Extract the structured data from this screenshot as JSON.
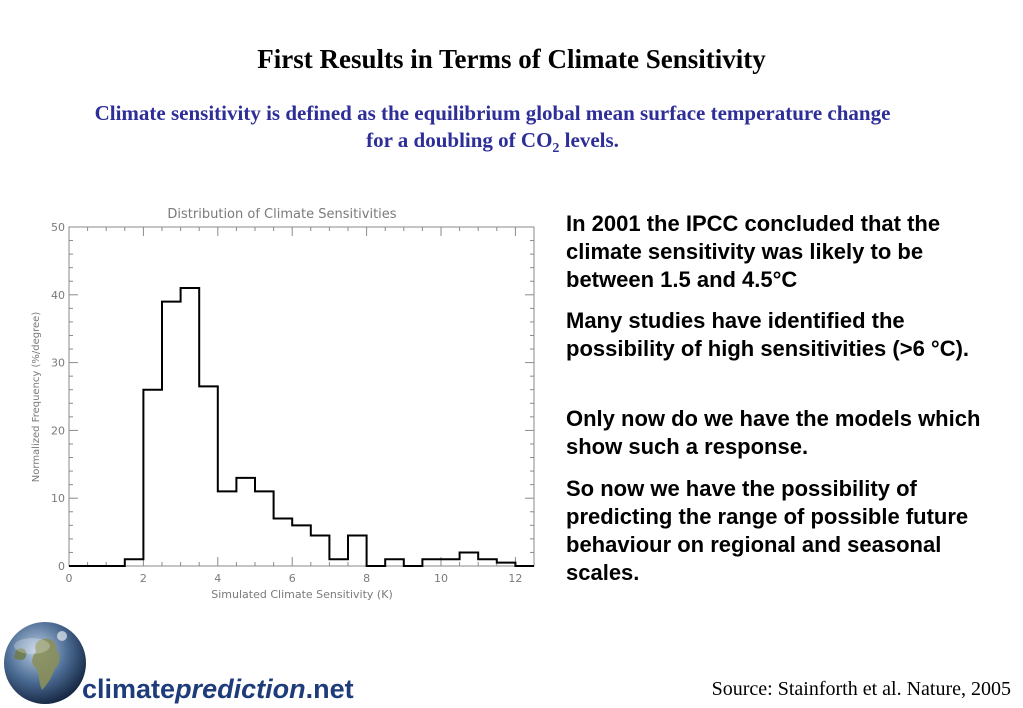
{
  "header": {
    "title": "First Results in Terms of Climate Sensitivity",
    "subtitle_a": "Climate sensitivity is defined as the equilibrium global mean surface temperature change for a doubling of CO",
    "subtitle_sub": "2",
    "subtitle_b": " levels."
  },
  "bullets": {
    "b1": "In 2001 the IPCC concluded that the climate sensitivity was likely to be between 1.5 and 4.5°C",
    "b2": "Many studies have identified the possibility of high sensitivities (>6 °C).",
    "b3": "Only now do we have the models which show such a response.",
    "b4": "So now we have the possibility of predicting the range of possible future behaviour on regional and seasonal scales."
  },
  "source": "Source: Stainforth et al. Nature, 2005",
  "logo": {
    "part1": "climate",
    "part2": "prediction",
    "part3": ".net"
  },
  "chart_data": {
    "type": "bar",
    "title": "Distribution of Climate Sensitivities",
    "xlabel": "Simulated Climate Sensitivity (K)",
    "ylabel": "Normalized Frequency (%/degree)",
    "xlim": [
      0,
      12.5
    ],
    "ylim": [
      0,
      50
    ],
    "xticks": [
      "0",
      "2",
      "4",
      "6",
      "8",
      "10",
      "12"
    ],
    "yticks": [
      "0",
      "10",
      "20",
      "30",
      "40",
      "50"
    ],
    "bin_width": 0.5,
    "bin_starts": [
      0.0,
      0.5,
      1.0,
      1.5,
      2.0,
      2.5,
      3.0,
      3.5,
      4.0,
      4.5,
      5.0,
      5.5,
      6.0,
      6.5,
      7.0,
      7.5,
      8.0,
      8.5,
      9.0,
      9.5,
      10.0,
      10.5,
      11.0,
      11.5,
      12.0
    ],
    "values": [
      0,
      0,
      0,
      1,
      26,
      39,
      41,
      26.5,
      11,
      13,
      11,
      7,
      6,
      4.5,
      1,
      4.5,
      0,
      1,
      0,
      1,
      1,
      2,
      1,
      0.5,
      0
    ],
    "style": "step-outline"
  }
}
